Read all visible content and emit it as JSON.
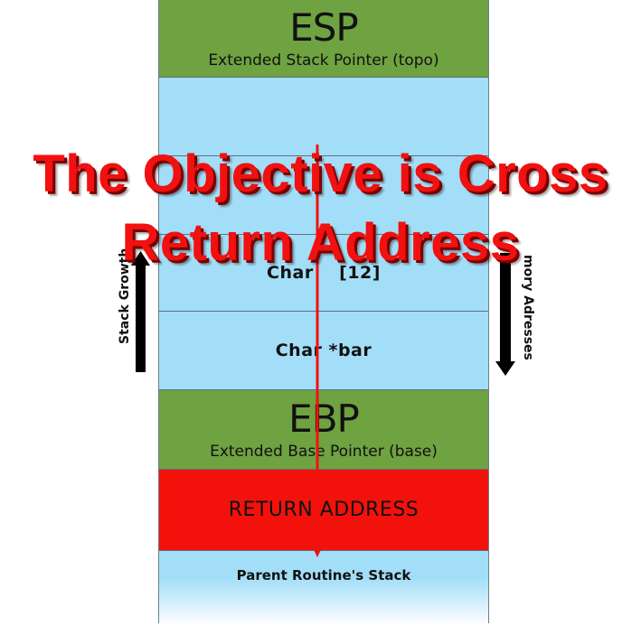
{
  "overlay": {
    "line1": "The Objective is Cross",
    "line2": "Return Address"
  },
  "stack": {
    "esp_title": "ESP",
    "esp_sub": "Extended Stack Pointer (topo)",
    "char_array": "Char    [12]",
    "char_bar": "Char *bar",
    "ebp_title": "EBP",
    "ebp_sub": "Extended Base Pointer (base)",
    "return_address": "RETURN ADDRESS",
    "parent_stack": "Parent Routine's Stack"
  },
  "labels": {
    "stack_growth": "Stack Growth",
    "memory_addresses": "mory Adresses"
  },
  "colors": {
    "green": "#6fa241",
    "blue": "#a3def8",
    "red": "#f2120b",
    "overlay_text": "#f21010"
  }
}
